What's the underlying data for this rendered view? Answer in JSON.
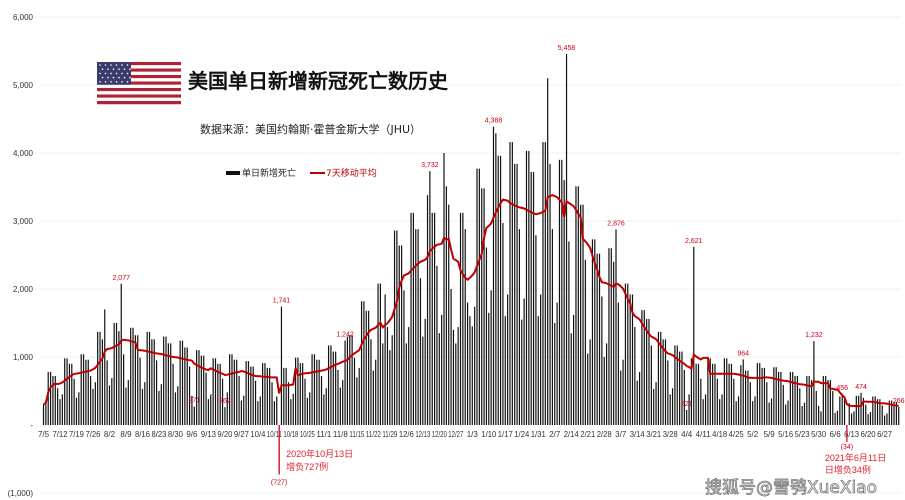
{
  "chart_data": {
    "type": "bar",
    "title": "美国单日新增新冠死亡数历史",
    "subtitle": "数据来源：美国约翰斯·霍普金斯大学（JHU）",
    "legend": {
      "placement": "top-center",
      "bar_label": "单日新增死亡",
      "line_label": "7天移动平均"
    },
    "colors": {
      "bars": "#111111",
      "line": "#c00000",
      "annotation": "#d0021b",
      "grid": "#eeeeee"
    },
    "grid": true,
    "ylim": [
      -1000,
      6000
    ],
    "y_ticks": [
      "6,000",
      "5,000",
      "4,000",
      "3,000",
      "2,000",
      "1,000",
      "-",
      "(1,000)"
    ],
    "x_ticks": [
      "7/5",
      "7/12",
      "7/19",
      "7/26",
      "8/2",
      "8/9",
      "8/16",
      "8/23",
      "8/30",
      "9/6",
      "9/13",
      "9/20",
      "9/27",
      "10/4",
      "10/11",
      "10/18",
      "10/25",
      "11/1",
      "11/8",
      "11/15",
      "11/22",
      "11/29",
      "12/6",
      "12/13",
      "12/20",
      "12/27",
      "1/3",
      "1/10",
      "1/17",
      "1/24",
      "1/31",
      "2/7",
      "2/14",
      "2/21",
      "2/28",
      "3/7",
      "3/14",
      "3/21",
      "3/28",
      "4/4",
      "4/11",
      "4/18",
      "4/25",
      "5/2",
      "5/9",
      "5/16",
      "5/23",
      "5/30",
      "6/6",
      "6/13",
      "6/20",
      "6/27"
    ],
    "series": [
      {
        "name": "单日新增死亡",
        "type": "bar",
        "values": [
          300,
          360,
          780,
          780,
          720,
          720,
          540,
          380,
          450,
          980,
          980,
          900,
          900,
          680,
          400,
          480,
          1040,
          1040,
          960,
          960,
          720,
          530,
          630,
          1370,
          1370,
          1260,
          1700,
          950,
          580,
          690,
          1500,
          1500,
          1380,
          2077,
          1040,
          550,
          660,
          1430,
          1430,
          1320,
          1320,
          990,
          530,
          630,
          1370,
          1370,
          1260,
          1260,
          950,
          500,
          600,
          1300,
          1300,
          1200,
          1200,
          900,
          480,
          570,
          1240,
          1240,
          1140,
          1140,
          860,
          430,
          271,
          1100,
          1100,
          1020,
          1020,
          770,
          380,
          450,
          980,
          980,
          900,
          900,
          680,
          262,
          480,
          1040,
          1040,
          960,
          960,
          720,
          360,
          430,
          940,
          940,
          860,
          860,
          650,
          350,
          420,
          910,
          910,
          840,
          840,
          630,
          350,
          420,
          -727,
          1741,
          840,
          840,
          630,
          380,
          460,
          990,
          990,
          910,
          910,
          680,
          400,
          480,
          1040,
          1040,
          960,
          960,
          720,
          450,
          540,
          1170,
          1170,
          1080,
          1080,
          810,
          550,
          660,
          1242,
          1300,
          1320,
          1320,
          990,
          700,
          840,
          1820,
          1820,
          1680,
          1680,
          1260,
          800,
          960,
          2080,
          2080,
          1200,
          1920,
          1440,
          1100,
          1320,
          2860,
          2860,
          2640,
          2640,
          1980,
          1200,
          1440,
          3120,
          3120,
          2880,
          2880,
          2160,
          1300,
          1560,
          3380,
          3732,
          3120,
          3120,
          2340,
          1350,
          1620,
          4000,
          3510,
          3240,
          2000,
          1400,
          1200,
          1440,
          3120,
          3120,
          2880,
          1800,
          1600,
          1450,
          1740,
          3770,
          3770,
          3480,
          3480,
          2610,
          1650,
          1980,
          4388,
          4290,
          3960,
          3960,
          2970,
          1600,
          1920,
          4160,
          4160,
          3840,
          3840,
          2880,
          1550,
          1860,
          4030,
          4030,
          3720,
          3720,
          2790,
          1600,
          1920,
          4160,
          4160,
          5100,
          3840,
          2880,
          1500,
          1800,
          3900,
          3900,
          3600,
          5458,
          2700,
          1350,
          1620,
          3510,
          3510,
          3240,
          3240,
          2430,
          1050,
          1260,
          2730,
          2730,
          2520,
          2520,
          1890,
          1000,
          1200,
          2600,
          2600,
          2400,
          2876,
          1800,
          800,
          960,
          2080,
          2080,
          1920,
          1920,
          1440,
          650,
          780,
          1690,
          1690,
          1560,
          1560,
          1170,
          530,
          630,
          1370,
          1370,
          1260,
          1260,
          950,
          450,
          540,
          1170,
          1170,
          1080,
          1080,
          810,
          221,
          450,
          980,
          2621,
          900,
          900,
          680,
          380,
          450,
          980,
          980,
          900,
          900,
          680,
          380,
          450,
          980,
          980,
          900,
          900,
          680,
          350,
          420,
          880,
          964,
          800,
          800,
          630,
          350,
          420,
          910,
          910,
          840,
          840,
          630,
          330,
          390,
          850,
          850,
          780,
          780,
          590,
          300,
          360,
          780,
          780,
          720,
          720,
          540,
          280,
          330,
          720,
          720,
          660,
          1232,
          500,
          280,
          200,
          720,
          720,
          660,
          660,
          500,
          180,
          210,
          420,
          456,
          420,
          -34,
          320,
          170,
          200,
          430,
          430,
          474,
          400,
          300,
          160,
          190,
          420,
          420,
          380,
          380,
          290,
          140,
          170,
          360,
          360,
          340,
          340,
          266
        ]
      },
      {
        "name": "7天移动平均",
        "type": "line",
        "method": "7-day rolling mean of daily values"
      }
    ],
    "data_labels": [
      {
        "date": "2020-08-07",
        "label": "2,077"
      },
      {
        "date": "2020-09-07",
        "label": "271"
      },
      {
        "date": "2020-09-20",
        "label": "262"
      },
      {
        "date": "2020-10-14",
        "label": "1,741"
      },
      {
        "date": "2020-11-10",
        "label": "1,242"
      },
      {
        "date": "2020-12-16",
        "label": "3,732"
      },
      {
        "date": "2021-01-12",
        "label": "4,388"
      },
      {
        "date": "2021-02-12",
        "label": "5,458"
      },
      {
        "date": "2021-03-05",
        "label": "2,876"
      },
      {
        "date": "2021-04-04",
        "label": "221"
      },
      {
        "date": "2021-04-07",
        "label": "2,621"
      },
      {
        "date": "2021-04-28",
        "label": "964"
      },
      {
        "date": "2021-05-28",
        "label": "1,232"
      },
      {
        "date": "2021-06-09",
        "label": "456"
      },
      {
        "date": "2021-06-17",
        "label": "474"
      },
      {
        "date": "2021-07-03",
        "label": "266"
      }
    ],
    "callouts": [
      {
        "date": "2020-10-13",
        "value_label": "(727)",
        "line1": "2020年10月13日",
        "line2": "增负727例"
      },
      {
        "date": "2021-06-11",
        "value_label": "(34)",
        "line1": "2021年6月11日",
        "line2": "日增负34例"
      }
    ]
  },
  "watermark": "搜狐号@雪鸮XueXiao"
}
